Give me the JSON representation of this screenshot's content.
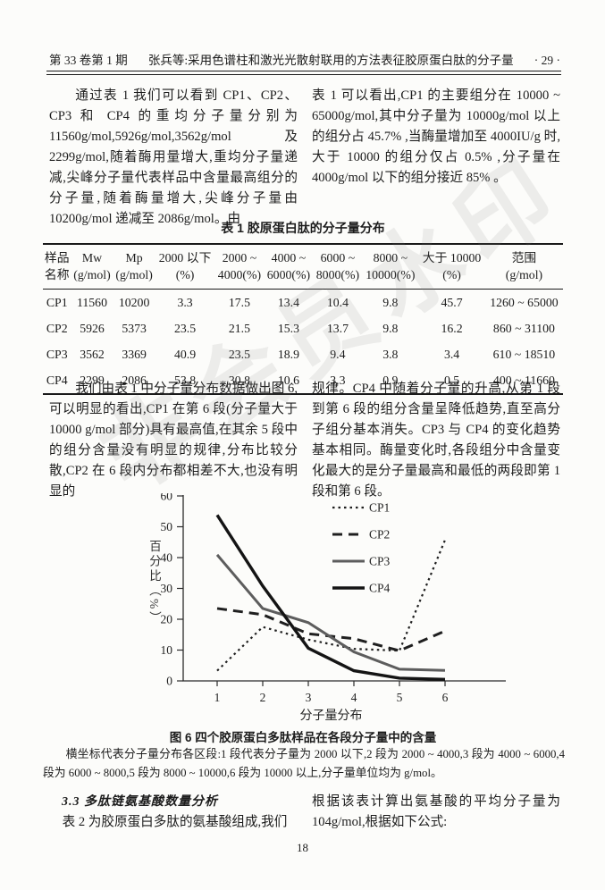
{
  "header": {
    "volume_issue": "第 33 卷第 1 期",
    "running_title": "张兵等:采用色谱柱和激光光散射联用的方法表征胶原蛋白肽的分子量",
    "page_marker": "· 29 ·"
  },
  "watermark_text": "非会员水印",
  "section_top": {
    "left_paragraph": "通过表 1 我们可以看到 CP1、CP2、CP3 和 CP4 的重均分子量分别为 11560g/mol,5926g/mol,3562g/mol 及 2299g/mol,随着酶用量增大,重均分子量递减,尖峰分子量代表样品中含量最高组分的分子量,随着酶量增大,尖峰分子量由 10200g/mol 递减至 2086g/mol。由",
    "right_paragraph": "表 1 可以看出,CP1 的主要组分在 10000 ~ 65000g/mol,其中分子量为 10000g/mol 以上的组分占 45.7% ,当酶量增加至 4000IU/g 时,大于 10000 的组分仅占 0.5% ,分子量在 4000g/mol 以下的组分接近 85% 。"
  },
  "table": {
    "title": "表 1   胶原蛋白肽的分子量分布",
    "headers_line1": [
      "样品",
      "Mw",
      "Mp",
      "2000 以下",
      "2000 ~",
      "4000 ~",
      "6000 ~",
      "8000 ~",
      "大于 10000",
      "范围"
    ],
    "headers_line2": [
      "名称",
      "(g/mol)",
      "(g/mol)",
      "(%)",
      "4000(%)",
      "6000(%)",
      "8000(%)",
      "10000(%)",
      "(%)",
      "(g/mol)"
    ],
    "rows": [
      [
        "CP1",
        "11560",
        "10200",
        "3.3",
        "17.5",
        "13.4",
        "10.4",
        "9.8",
        "45.7",
        "1260 ~ 65000"
      ],
      [
        "CP2",
        "5926",
        "5373",
        "23.5",
        "21.5",
        "15.3",
        "13.7",
        "9.8",
        "16.2",
        "860 ~ 31100"
      ],
      [
        "CP3",
        "3562",
        "3369",
        "40.9",
        "23.5",
        "18.9",
        "9.4",
        "3.8",
        "3.4",
        "610 ~ 18510"
      ],
      [
        "CP4",
        "2299",
        "2086",
        "53.8",
        "30.8",
        "10.6",
        "3.3",
        "0.9",
        "0.5",
        "400 ~ 11660"
      ]
    ]
  },
  "section_mid": {
    "left_paragraph": "我们由表 1 中分子量分布数据做出图 6,可以明显的看出,CP1 在第 6 段(分子量大于 10000 g/mol 部分)具有最高值,在其余 5 段中的组分含量没有明显的规律,分布比较分散,CP2 在 6 段内分布都相差不大,也没有明显的",
    "right_paragraph": "规律。CP4 中随着分子量的升高,从第 1 段到第 6 段的组分含量呈降低趋势,直至高分子组分基本消失。CP3 与 CP4 的变化趋势基本相同。酶量变化时,各段组分中含量变化最大的是分子量最高和最低的两段即第 1 段和第 6 段。"
  },
  "figure": {
    "caption_title": "图 6   四个胶原蛋白多肽样品在各段分子量中的含量",
    "caption_note": "横坐标代表分子量分布各区段:1 段代表分子量为 2000 以下,2 段为 2000 ~ 4000,3 段为 4000 ~ 6000,4 段为 6000 ~ 8000,5 段为 8000 ~ 10000,6 段为 10000 以上,分子量单位均为 g/mol。",
    "chart_data": {
      "type": "line",
      "x": [
        1,
        2,
        3,
        4,
        5,
        6
      ],
      "series": [
        {
          "name": "CP1",
          "style": "dotted",
          "color": "#1f1f1f",
          "width": 2.2,
          "values": [
            3.3,
            17.5,
            13.4,
            10.4,
            9.8,
            45.7
          ]
        },
        {
          "name": "CP2",
          "style": "dashed",
          "color": "#1f1f1f",
          "width": 3,
          "values": [
            23.5,
            21.5,
            15.3,
            13.7,
            9.8,
            16.2
          ]
        },
        {
          "name": "CP3",
          "style": "solid",
          "color": "#5d5d5d",
          "width": 3,
          "values": [
            40.9,
            23.5,
            18.9,
            9.4,
            3.8,
            3.4
          ]
        },
        {
          "name": "CP4",
          "style": "solid",
          "color": "#141414",
          "width": 3.4,
          "values": [
            53.8,
            30.8,
            10.6,
            3.3,
            0.9,
            0.5
          ]
        }
      ],
      "title": "",
      "xlabel": "分子量分布",
      "ylabel": "百分比（%）",
      "ylim": [
        0,
        60
      ],
      "yticks": [
        0,
        10,
        20,
        30,
        40,
        50,
        60
      ],
      "legend_position": "top-right",
      "grid": false
    }
  },
  "section_bottom": {
    "heading": "3.3   多肽链氨基酸数量分析",
    "left_paragraph": "表 2 为胶原蛋白多肽的氨基酸组成,我们",
    "right_paragraph": "根据该表计算出氨基酸的平均分子量为 104g/mol,根据如下公式:"
  },
  "footer": {
    "page_number": "18"
  }
}
